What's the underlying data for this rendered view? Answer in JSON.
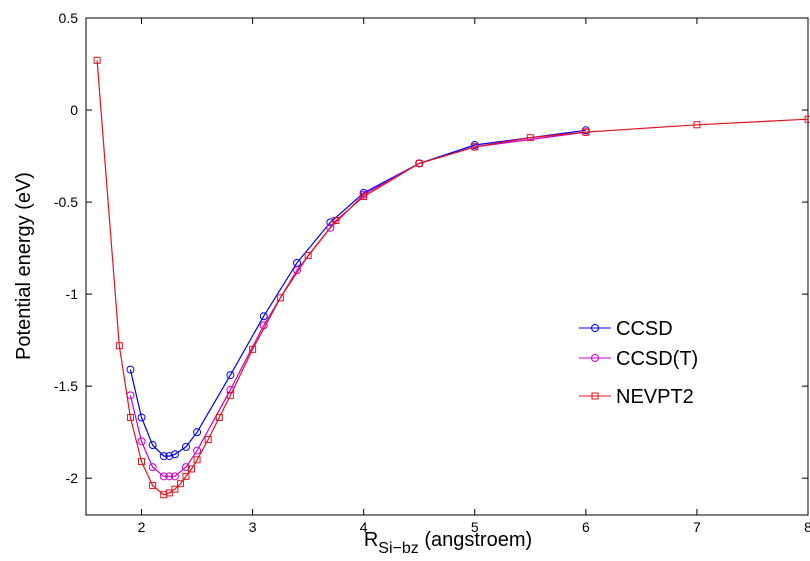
{
  "chart_data": {
    "type": "line",
    "title": "",
    "ylabel": "Potential energy (eV)",
    "xlabel": {
      "main": "R",
      "subscript": "Si−bz",
      "suffix": " (angstroem)"
    },
    "xlim": [
      1.5,
      8
    ],
    "ylim": [
      -2.2,
      0.5
    ],
    "xticks": [
      2,
      3,
      4,
      5,
      6,
      7,
      8
    ],
    "xtick_labels": [
      "2",
      "3",
      "4",
      "5",
      "6",
      "7",
      "8"
    ],
    "yticks": [
      0.5,
      0,
      -0.5,
      -1,
      -1.5,
      -2
    ],
    "ytick_labels": [
      "0.5",
      "0",
      "-0.5",
      "-1",
      "-1.5",
      "-2"
    ],
    "grid": false,
    "legend_position": "lower-right",
    "series": [
      {
        "name": "CCSD",
        "color": "#0000ff",
        "marker": "circle",
        "x": [
          1.9,
          2.0,
          2.1,
          2.2,
          2.25,
          2.3,
          2.4,
          2.5,
          2.8,
          3.1,
          3.4,
          3.7,
          4.0,
          4.5,
          5.0,
          6.0
        ],
        "y": [
          -1.41,
          -1.67,
          -1.82,
          -1.88,
          -1.88,
          -1.87,
          -1.83,
          -1.75,
          -1.44,
          -1.12,
          -0.83,
          -0.61,
          -0.45,
          -0.29,
          -0.19,
          -0.11
        ]
      },
      {
        "name": "CCSD(T)",
        "color": "#cc00cc",
        "marker": "circle",
        "x": [
          1.9,
          2.0,
          2.1,
          2.2,
          2.25,
          2.3,
          2.4,
          2.5,
          2.8,
          3.1,
          3.4,
          3.7,
          4.0,
          4.5,
          5.0,
          6.0
        ],
        "y": [
          -1.55,
          -1.8,
          -1.94,
          -1.99,
          -1.99,
          -1.99,
          -1.94,
          -1.85,
          -1.52,
          -1.17,
          -0.87,
          -0.64,
          -0.46,
          -0.29,
          -0.2,
          -0.12
        ]
      },
      {
        "name": "NEVPT2",
        "color": "#e0141e",
        "marker": "square",
        "x": [
          1.6,
          1.8,
          1.9,
          2.0,
          2.1,
          2.2,
          2.25,
          2.3,
          2.35,
          2.4,
          2.45,
          2.5,
          2.6,
          2.7,
          2.8,
          3.0,
          3.25,
          3.5,
          3.75,
          4.0,
          4.5,
          5.0,
          5.5,
          6.0,
          7.0,
          8.0
        ],
        "y": [
          0.27,
          -1.28,
          -1.67,
          -1.91,
          -2.04,
          -2.09,
          -2.08,
          -2.06,
          -2.03,
          -1.99,
          -1.95,
          -1.9,
          -1.79,
          -1.67,
          -1.55,
          -1.3,
          -1.02,
          -0.79,
          -0.6,
          -0.47,
          -0.29,
          -0.2,
          -0.15,
          -0.12,
          -0.08,
          -0.05
        ]
      }
    ]
  }
}
